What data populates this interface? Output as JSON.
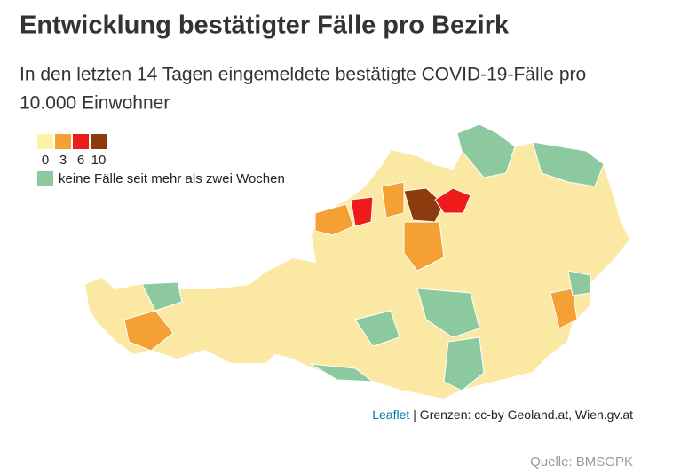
{
  "header": {
    "title": "Entwicklung bestätigter Fälle pro Bezirk",
    "subtitle": [
      "In den letzten 14 Tagen eingemeldete bestätigte COVID-19-Fälle pro",
      "10.000 Einwohner"
    ]
  },
  "legend": {
    "scale": [
      {
        "label": "0",
        "color": "#fdf3a6"
      },
      {
        "label": "3",
        "color": "#f5a035"
      },
      {
        "label": "6",
        "color": "#ee1b1b"
      },
      {
        "label": "10",
        "color": "#8c3a0e"
      }
    ],
    "no_cases": {
      "label": "keine Fälle seit mehr als zwei Wochen",
      "color": "#8cc99e"
    }
  },
  "attribution": {
    "link": "Leaflet",
    "text": "| Grenzen: cc-by Geoland.at, Wien.gv.at"
  },
  "source": "Quelle: BMSGPK"
}
